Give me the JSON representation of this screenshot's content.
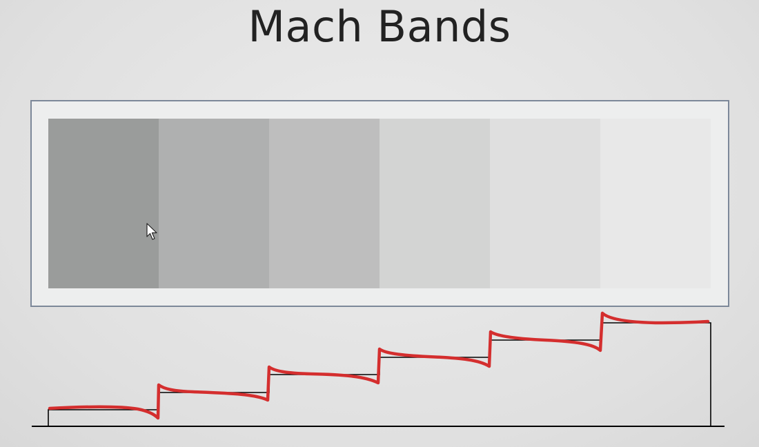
{
  "slide": {
    "title": "Mach Bands"
  },
  "bands": [
    {
      "color": "#9a9c9b"
    },
    {
      "color": "#afb0b0"
    },
    {
      "color": "#bebebe"
    },
    {
      "color": "#d3d4d3"
    },
    {
      "color": "#dfdfdf"
    },
    {
      "color": "#e8e8e8"
    }
  ],
  "icons": {
    "pointer": "mouse-cursor-icon"
  },
  "colors": {
    "staircase": "#000000",
    "perceived_brightness": "#d42e2e",
    "frame_border": "#7c8899"
  }
}
